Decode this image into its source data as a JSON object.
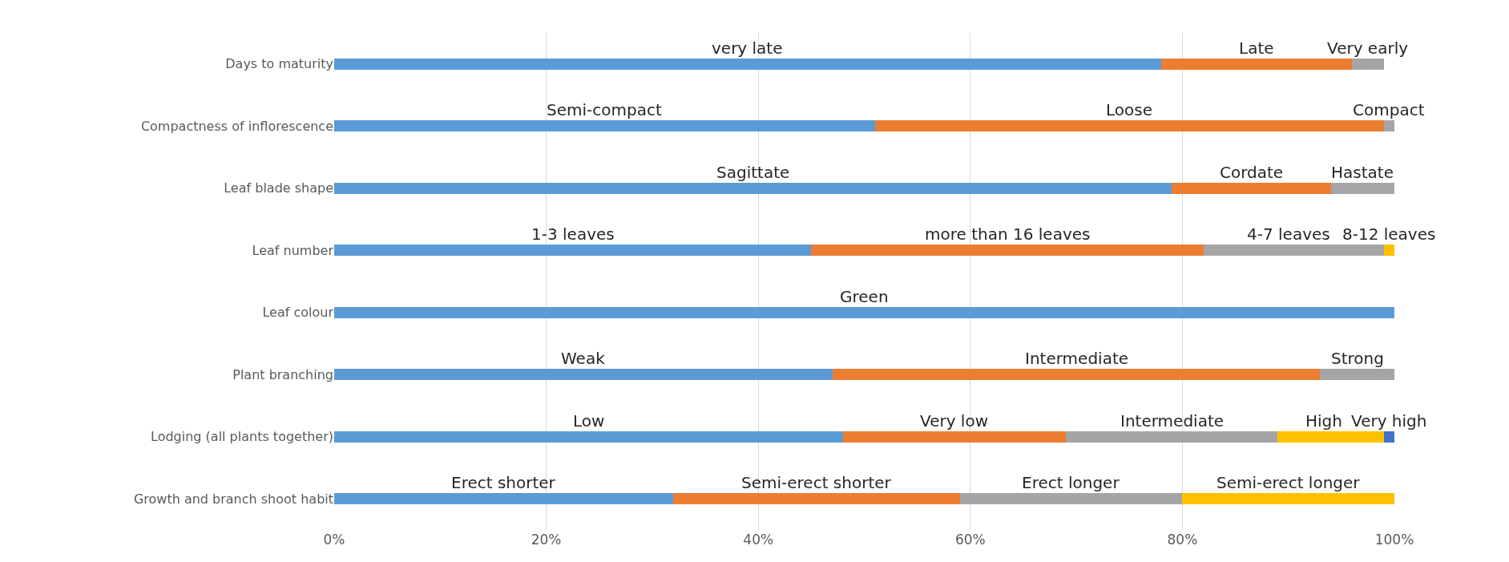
{
  "chart_data": {
    "type": "bar",
    "orientation": "horizontal",
    "stacked": true,
    "categories": [
      "Days to maturity",
      "Compactness of inflorescence",
      "Leaf blade shape",
      "Leaf number",
      "Leaf colour",
      "Plant branching",
      "Lodging (all plants together)",
      "Growth and branch shoot habit"
    ],
    "series": [
      {
        "color": "#5b9bd5",
        "values": [
          78,
          51,
          79,
          45,
          100,
          47,
          48,
          32
        ],
        "value_labels": [
          "very late",
          "Semi-compact",
          "Sagittate",
          "1-3 leaves",
          "Green",
          "Weak",
          "Low",
          "Erect shorter"
        ]
      },
      {
        "color": "#ed7d31",
        "values": [
          18,
          48,
          15,
          37,
          null,
          46,
          21,
          27
        ],
        "value_labels": [
          "Late",
          "Loose",
          "Cordate",
          "more than 16 leaves",
          null,
          "Intermediate",
          "Very low",
          "Semi-erect shorter"
        ]
      },
      {
        "color": "#a5a5a5",
        "values": [
          3,
          1,
          6,
          17,
          null,
          7,
          20,
          21
        ],
        "value_labels": [
          "Very early",
          "Compact",
          "Hastate",
          "4-7 leaves",
          null,
          "Strong",
          "Intermediate",
          "Erect longer"
        ]
      },
      {
        "color": "#ffc000",
        "values": [
          null,
          null,
          null,
          1,
          null,
          null,
          10,
          20
        ],
        "value_labels": [
          null,
          null,
          null,
          "8-12 leaves",
          null,
          null,
          "High",
          "Semi-erect longer"
        ]
      },
      {
        "color": "#4472c4",
        "values": [
          null,
          null,
          null,
          null,
          null,
          null,
          1,
          null
        ],
        "value_labels": [
          null,
          null,
          null,
          null,
          null,
          null,
          "Very high",
          null
        ]
      }
    ],
    "xlim": [
      0,
      100
    ],
    "xticks": [
      {
        "value": 0,
        "label": "0%"
      },
      {
        "value": 20,
        "label": "20%"
      },
      {
        "value": 40,
        "label": "40%"
      },
      {
        "value": 60,
        "label": "60%"
      },
      {
        "value": 80,
        "label": "80%"
      },
      {
        "value": 100,
        "label": "100%"
      }
    ],
    "grid": "x"
  }
}
